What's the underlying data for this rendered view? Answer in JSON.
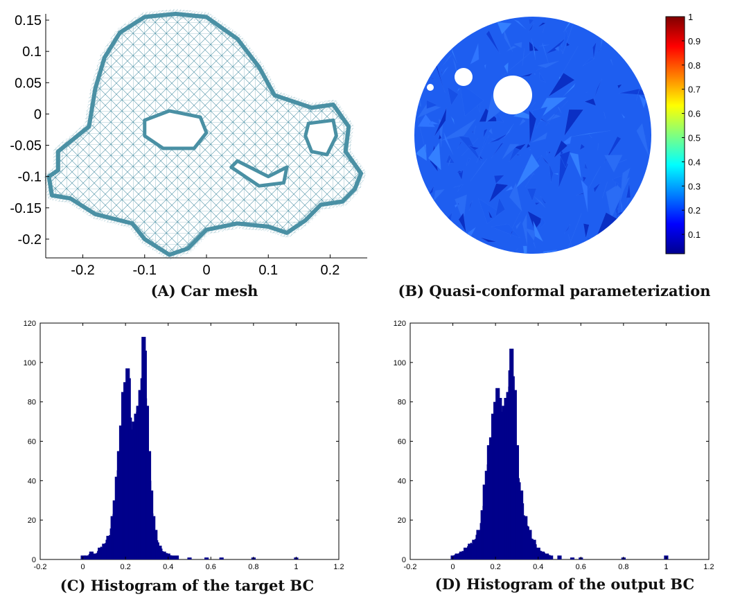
{
  "captions": {
    "a": "(A) Car mesh",
    "b": "(B) Quasi-conformal parameterization",
    "c": "(C) Histogram of the target BC",
    "d": "(D) Histogram of the output BC"
  },
  "colors": {
    "mesh": "#4a90a4",
    "disk": "#1e5ef0",
    "bar": "#00008b"
  },
  "chart_data": [
    {
      "id": "A",
      "type": "scatter",
      "title": "(A) Car mesh",
      "xlim": [
        -0.26,
        0.26
      ],
      "ylim": [
        -0.23,
        0.16
      ],
      "xticks": [
        "-0.2",
        "-0.1",
        "0",
        "0.1",
        "0.2"
      ],
      "xtick_values": [
        -0.2,
        -0.1,
        0,
        0.1,
        0.2
      ],
      "yticks": [
        "0.15",
        "0.1",
        "0.05",
        "0",
        "-0.05",
        "-0.1",
        "-0.15",
        "-0.2"
      ],
      "ytick_values": [
        0.15,
        0.1,
        0.05,
        0,
        -0.05,
        -0.1,
        -0.15,
        -0.2
      ],
      "outline": [
        [
          -0.24,
          -0.09
        ],
        [
          -0.255,
          -0.1
        ],
        [
          -0.25,
          -0.13
        ],
        [
          -0.22,
          -0.135
        ],
        [
          -0.18,
          -0.16
        ],
        [
          -0.12,
          -0.175
        ],
        [
          -0.1,
          -0.2
        ],
        [
          -0.06,
          -0.225
        ],
        [
          -0.03,
          -0.215
        ],
        [
          0.0,
          -0.185
        ],
        [
          0.05,
          -0.175
        ],
        [
          0.1,
          -0.18
        ],
        [
          0.13,
          -0.19
        ],
        [
          0.16,
          -0.17
        ],
        [
          0.185,
          -0.145
        ],
        [
          0.22,
          -0.14
        ],
        [
          0.24,
          -0.12
        ],
        [
          0.25,
          -0.095
        ],
        [
          0.225,
          -0.06
        ],
        [
          0.23,
          -0.02
        ],
        [
          0.205,
          0.015
        ],
        [
          0.17,
          0.01
        ],
        [
          0.14,
          0.02
        ],
        [
          0.11,
          0.03
        ],
        [
          0.085,
          0.075
        ],
        [
          0.05,
          0.12
        ],
        [
          0.0,
          0.155
        ],
        [
          -0.05,
          0.16
        ],
        [
          -0.1,
          0.155
        ],
        [
          -0.14,
          0.13
        ],
        [
          -0.165,
          0.09
        ],
        [
          -0.18,
          0.04
        ],
        [
          -0.19,
          -0.02
        ],
        [
          -0.215,
          -0.04
        ],
        [
          -0.24,
          -0.06
        ]
      ],
      "holes": [
        [
          [
            -0.1,
            -0.01
          ],
          [
            -0.06,
            0.005
          ],
          [
            -0.01,
            -0.005
          ],
          [
            0.0,
            -0.03
          ],
          [
            -0.02,
            -0.055
          ],
          [
            -0.07,
            -0.055
          ],
          [
            -0.1,
            -0.035
          ]
        ],
        [
          [
            0.1,
            -0.1
          ],
          [
            0.13,
            -0.085
          ],
          [
            0.125,
            -0.11
          ],
          [
            0.085,
            -0.115
          ],
          [
            0.04,
            -0.085
          ],
          [
            0.05,
            -0.075
          ]
        ],
        [
          [
            0.165,
            -0.015
          ],
          [
            0.205,
            -0.01
          ],
          [
            0.21,
            -0.035
          ],
          [
            0.195,
            -0.065
          ],
          [
            0.17,
            -0.06
          ],
          [
            0.16,
            -0.035
          ]
        ]
      ]
    },
    {
      "id": "B",
      "type": "heatmap",
      "title": "(B) Quasi-conformal parameterization",
      "colorbar_ticks": [
        "1",
        "0.9",
        "0.8",
        "0.7",
        "0.6",
        "0.5",
        "0.4",
        "0.3",
        "0.2",
        "0.1"
      ],
      "colorbar_values": [
        1,
        0.9,
        0.8,
        0.7,
        0.6,
        0.5,
        0.4,
        0.3,
        0.2,
        0.1
      ],
      "color_range": [
        0.02,
        1
      ],
      "typical_value_range": [
        0.15,
        0.3
      ]
    },
    {
      "id": "C",
      "type": "bar",
      "title": "(C) Histogram of the target BC",
      "xlim": [
        -0.2,
        1.2
      ],
      "ylim": [
        0,
        120
      ],
      "xticks": [
        "-0.2",
        "0",
        "0.2",
        "0.4",
        "0.6",
        "0.8",
        "1",
        "1.2"
      ],
      "xtick_values": [
        -0.2,
        0,
        0.2,
        0.4,
        0.6,
        0.8,
        1,
        1.2
      ],
      "yticks": [
        "120",
        "100",
        "80",
        "60",
        "40",
        "20",
        "0"
      ],
      "ytick_values": [
        120,
        100,
        80,
        60,
        40,
        20,
        0
      ],
      "x": [
        0.0,
        0.02,
        0.04,
        0.06,
        0.08,
        0.1,
        0.12,
        0.14,
        0.15,
        0.16,
        0.17,
        0.18,
        0.19,
        0.2,
        0.21,
        0.215,
        0.22,
        0.23,
        0.24,
        0.25,
        0.26,
        0.27,
        0.28,
        0.285,
        0.29,
        0.3,
        0.31,
        0.32,
        0.33,
        0.34,
        0.36,
        0.38,
        0.4,
        0.42,
        0.44,
        0.5,
        0.58,
        0.65,
        0.8,
        1.0
      ],
      "values": [
        2,
        2,
        4,
        3,
        6,
        8,
        12,
        22,
        30,
        42,
        55,
        68,
        85,
        90,
        97,
        92,
        72,
        64,
        70,
        74,
        78,
        86,
        92,
        113,
        106,
        78,
        55,
        35,
        22,
        15,
        7,
        4,
        3,
        2,
        2,
        1,
        1,
        1,
        1,
        1
      ]
    },
    {
      "id": "D",
      "type": "bar",
      "title": "(D) Histogram of the output BC",
      "xlim": [
        -0.2,
        1.2
      ],
      "ylim": [
        0,
        120
      ],
      "xticks": [
        "-0.2",
        "0",
        "0.2",
        "0.4",
        "0.6",
        "0.8",
        "1",
        "1.2"
      ],
      "xtick_values": [
        -0.2,
        0,
        0.2,
        0.4,
        0.6,
        0.8,
        1,
        1.2
      ],
      "yticks": [
        "120",
        "100",
        "80",
        "60",
        "40",
        "20",
        "0"
      ],
      "ytick_values": [
        120,
        100,
        80,
        60,
        40,
        20,
        0
      ],
      "x": [
        0.0,
        0.02,
        0.04,
        0.06,
        0.08,
        0.1,
        0.12,
        0.14,
        0.15,
        0.16,
        0.17,
        0.18,
        0.19,
        0.2,
        0.21,
        0.22,
        0.23,
        0.24,
        0.25,
        0.26,
        0.27,
        0.275,
        0.28,
        0.29,
        0.3,
        0.32,
        0.34,
        0.36,
        0.38,
        0.4,
        0.42,
        0.44,
        0.46,
        0.5,
        0.56,
        0.6,
        0.8,
        1.0
      ],
      "values": [
        2,
        3,
        4,
        6,
        8,
        10,
        15,
        25,
        38,
        45,
        58,
        62,
        74,
        80,
        87,
        82,
        75,
        78,
        82,
        85,
        96,
        107,
        93,
        86,
        58,
        35,
        22,
        15,
        10,
        6,
        4,
        3,
        2,
        2,
        1,
        1,
        1,
        2
      ]
    }
  ]
}
